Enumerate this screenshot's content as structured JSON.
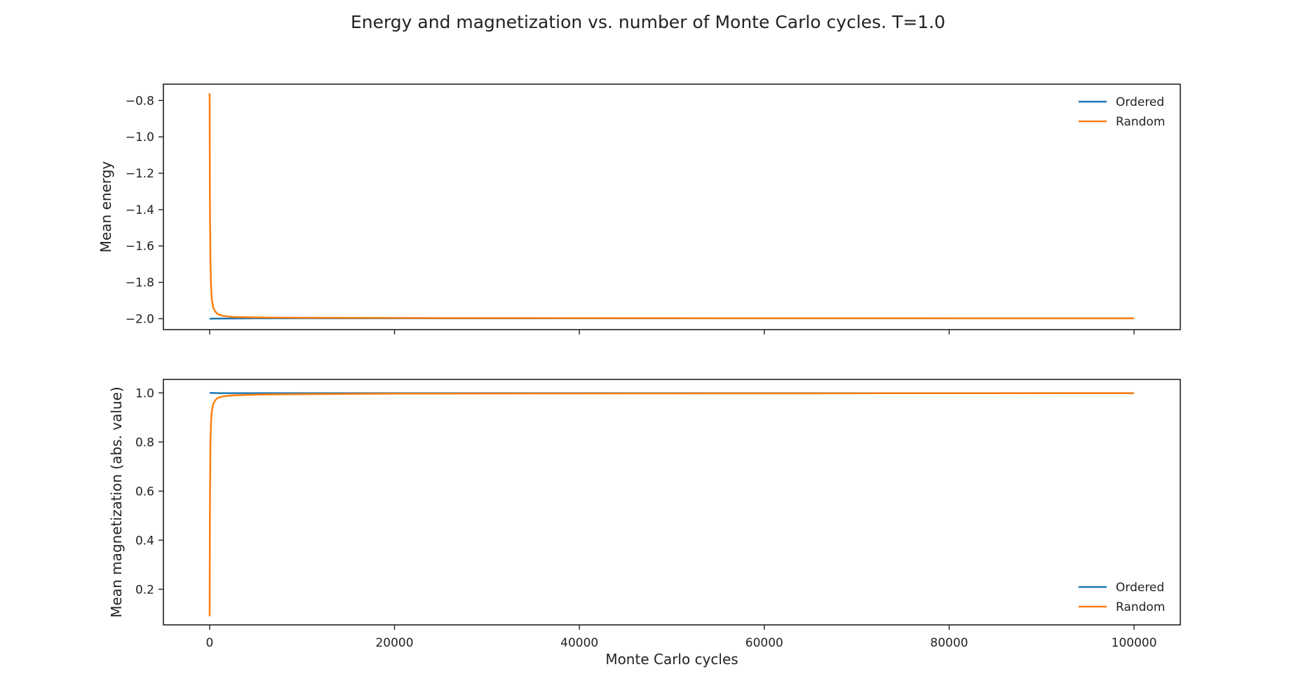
{
  "figure_title": "Energy and magnetization vs. number of Monte Carlo cycles. T=1.0",
  "chart_data": [
    {
      "type": "line",
      "ylabel": "Mean energy",
      "xlabel": "",
      "xlim": [
        -5000,
        105000
      ],
      "ylim": [
        -2.06,
        -0.71
      ],
      "xticks": [
        0,
        20000,
        40000,
        60000,
        80000,
        100000
      ],
      "show_xtick_labels": false,
      "yticks": [
        -2.0,
        -1.8,
        -1.6,
        -1.4,
        -1.2,
        -1.0,
        -0.8
      ],
      "ytick_labels": [
        "−2.0",
        "−1.8",
        "−1.6",
        "−1.4",
        "−1.2",
        "−1.0",
        "−0.8"
      ],
      "grid": false,
      "legend_position": "top-right",
      "series": [
        {
          "name": "Ordered",
          "color": "#1f77b4",
          "x": [
            1,
            500,
            1000,
            5000,
            20000,
            50000,
            100000
          ],
          "y": [
            -2.0,
            -1.9995,
            -1.999,
            -1.998,
            -1.998,
            -1.998,
            -1.998
          ]
        },
        {
          "name": "Random",
          "color": "#ff7f0e",
          "x": [
            1,
            30,
            80,
            150,
            250,
            400,
            600,
            900,
            1500,
            2500,
            5000,
            10000,
            20000,
            50000,
            100000
          ],
          "y": [
            -0.76,
            -1.35,
            -1.65,
            -1.82,
            -1.9,
            -1.94,
            -1.96,
            -1.975,
            -1.985,
            -1.99,
            -1.993,
            -1.995,
            -1.996,
            -1.997,
            -1.998
          ]
        }
      ]
    },
    {
      "type": "line",
      "ylabel": "Mean magnetization (abs. value)",
      "xlabel": "Monte Carlo cycles",
      "xlim": [
        -5000,
        105000
      ],
      "ylim": [
        0.055,
        1.055
      ],
      "xticks": [
        0,
        20000,
        40000,
        60000,
        80000,
        100000
      ],
      "show_xtick_labels": true,
      "yticks": [
        0.2,
        0.4,
        0.6,
        0.8,
        1.0
      ],
      "ytick_labels": [
        "0.2",
        "0.4",
        "0.6",
        "0.8",
        "1.0"
      ],
      "grid": false,
      "legend_position": "bottom-right",
      "series": [
        {
          "name": "Ordered",
          "color": "#1f77b4",
          "x": [
            1,
            500,
            1000,
            5000,
            20000,
            50000,
            100000
          ],
          "y": [
            1.0,
            0.9995,
            0.999,
            0.999,
            0.999,
            0.999,
            0.999
          ]
        },
        {
          "name": "Random",
          "color": "#ff7f0e",
          "x": [
            1,
            30,
            80,
            150,
            250,
            400,
            600,
            900,
            1500,
            2500,
            5000,
            10000,
            20000,
            50000,
            100000
          ],
          "y": [
            0.09,
            0.5,
            0.78,
            0.88,
            0.93,
            0.955,
            0.97,
            0.98,
            0.986,
            0.99,
            0.993,
            0.995,
            0.997,
            0.998,
            0.999
          ]
        }
      ]
    }
  ]
}
